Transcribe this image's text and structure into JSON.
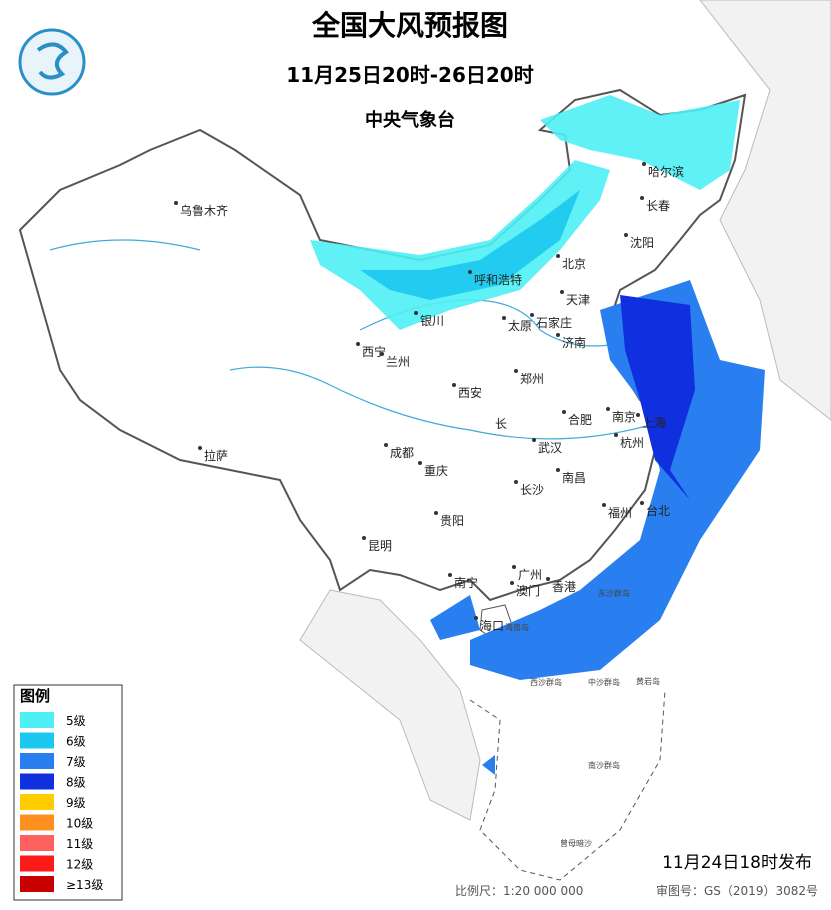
{
  "header": {
    "title": "全国大风预报图",
    "period": "11月25日20时-26日20时",
    "issuer": "中央气象台"
  },
  "legend": {
    "title": "图例",
    "items": [
      {
        "label": "5级",
        "color": "#4ef0f5"
      },
      {
        "label": "6级",
        "color": "#1cc8f0"
      },
      {
        "label": "7级",
        "color": "#2a7ff0"
      },
      {
        "label": "8级",
        "color": "#1030e0"
      },
      {
        "label": "9级",
        "color": "#ffcc00"
      },
      {
        "label": "10级",
        "color": "#ff9020"
      },
      {
        "label": "11级",
        "color": "#ff6060"
      },
      {
        "label": "12级",
        "color": "#ff1a1a"
      },
      {
        "label": "≥13级",
        "color": "#c80000"
      }
    ]
  },
  "cities": [
    "乌鲁木齐",
    "哈尔滨",
    "长春",
    "沈阳",
    "呼和浩特",
    "北京",
    "天津",
    "太原",
    "石家庄",
    "银川",
    "西宁",
    "兰州",
    "济南",
    "郑州",
    "西安",
    "南京",
    "上海",
    "合肥",
    "杭州",
    "武汉",
    "成都",
    "重庆",
    "南昌",
    "长沙",
    "拉萨",
    "福州",
    "台北",
    "贵阳",
    "昆明",
    "南宁",
    "广州",
    "香港",
    "澳门",
    "海口"
  ],
  "places": [
    "海南岛",
    "东沙群岛",
    "中沙群岛",
    "黄岩岛",
    "西沙群岛",
    "南沙群岛",
    "曾母暗沙",
    "长"
  ],
  "footer": {
    "issued": "11月24日18时发布",
    "scale": "比例尺：1:20 000 000",
    "review": "审图号：GS（2019）3082号"
  }
}
